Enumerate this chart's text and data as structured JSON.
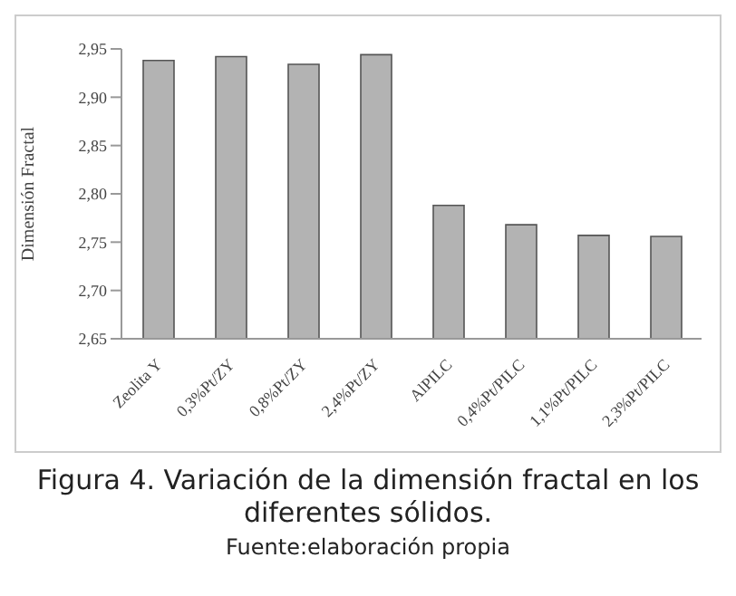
{
  "chart_data": {
    "type": "bar",
    "title": "Figura 4. Variación de la dimensión fractal en los diferentes sólidos.",
    "annotations": [
      "Fuente:elaboración propia"
    ],
    "ylabel": "Dimensión Fractal",
    "categories": [
      "Zeolita Y",
      "0,3%Pt/ZY",
      "0,8%Pt/ZY",
      "2,4%Pt/ZY",
      "AlPILC",
      "0,4%Pt/PILC",
      "1,1%Pt/PILC",
      "2,3%Pt/PILC"
    ],
    "values": [
      2.938,
      2.942,
      2.934,
      2.944,
      2.788,
      2.768,
      2.757,
      2.756
    ],
    "color": "#b3b3b3",
    "ylim": [
      2.65,
      2.95
    ],
    "yticks": [
      {
        "value": 2.65,
        "label": "2,65"
      },
      {
        "value": 2.7,
        "label": "2,70"
      },
      {
        "value": 2.75,
        "label": "2,75"
      },
      {
        "value": 2.8,
        "label": "2,80"
      },
      {
        "value": 2.85,
        "label": "2,85"
      },
      {
        "value": 2.9,
        "label": "2,90"
      },
      {
        "value": 2.95,
        "label": "2,95"
      }
    ],
    "grid": false,
    "legend": false
  }
}
